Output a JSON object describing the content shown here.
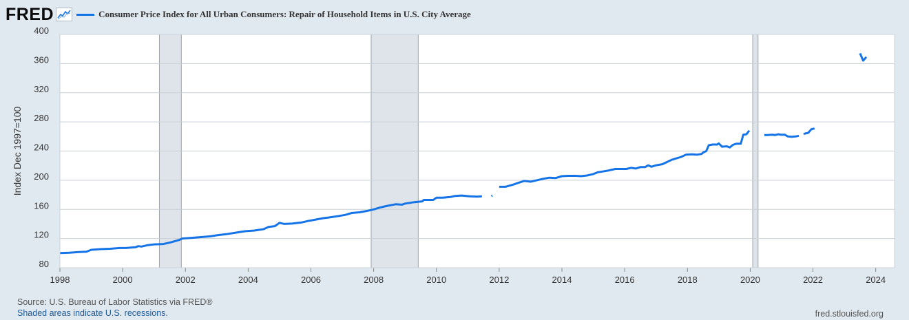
{
  "logo": {
    "text": "FRED"
  },
  "colors": {
    "series": "#1473e6",
    "recession": "#dfe4ea",
    "background": "#e1e9f0",
    "plot": "#ffffff"
  },
  "footer": {
    "source": "Source: U.S. Bureau of Labor Statistics via FRED®",
    "recession_note": "Shaded areas indicate U.S. recessions.",
    "site": "fred.stlouisfed.org"
  },
  "chart_data": {
    "type": "line",
    "title": "Consumer Price Index for All Urban Consumers: Repair of Household Items in U.S. City Average",
    "ylabel": "Index Dec 1997=100",
    "xlabel": "",
    "xlim": [
      1998.0,
      2024.6
    ],
    "ylim": [
      80,
      400
    ],
    "y_ticks": [
      80,
      120,
      160,
      200,
      240,
      280,
      320,
      360,
      400
    ],
    "x_ticks": [
      1998,
      2000,
      2002,
      2004,
      2006,
      2008,
      2010,
      2012,
      2014,
      2016,
      2018,
      2020,
      2022,
      2024
    ],
    "grid": true,
    "legend": "top",
    "recessions": [
      [
        2001.17,
        2001.87
      ],
      [
        2007.92,
        2009.42
      ],
      [
        2020.08,
        2020.25
      ]
    ],
    "series": [
      {
        "name": "Consumer Price Index for All Urban Consumers: Repair of Household Items in U.S. City Average",
        "segments": [
          [
            [
              1998.0,
              100
            ],
            [
              1998.3,
              100.5
            ],
            [
              1998.6,
              101.5
            ],
            [
              1998.85,
              102
            ],
            [
              1999.0,
              104.5
            ],
            [
              1999.3,
              105.5
            ],
            [
              1999.6,
              106
            ],
            [
              1999.9,
              107
            ],
            [
              2000.1,
              107
            ],
            [
              2000.4,
              108
            ],
            [
              2000.5,
              109.5
            ],
            [
              2000.6,
              109
            ],
            [
              2000.8,
              111
            ],
            [
              2001.0,
              112
            ],
            [
              2001.3,
              112.5
            ],
            [
              2001.55,
              115
            ],
            [
              2001.8,
              118
            ],
            [
              2001.9,
              120
            ],
            [
              2002.2,
              121
            ],
            [
              2002.5,
              122
            ],
            [
              2002.8,
              123
            ],
            [
              2003.0,
              124.5
            ],
            [
              2003.3,
              126
            ],
            [
              2003.6,
              128
            ],
            [
              2003.9,
              130
            ],
            [
              2004.2,
              131
            ],
            [
              2004.5,
              133
            ],
            [
              2004.65,
              136
            ],
            [
              2004.85,
              137
            ],
            [
              2005.0,
              141.5
            ],
            [
              2005.15,
              140
            ],
            [
              2005.4,
              140.5
            ],
            [
              2005.7,
              142
            ],
            [
              2005.9,
              144
            ],
            [
              2006.15,
              146
            ],
            [
              2006.4,
              148
            ],
            [
              2006.6,
              149
            ],
            [
              2006.9,
              151
            ],
            [
              2007.1,
              152.5
            ],
            [
              2007.3,
              155
            ],
            [
              2007.55,
              156
            ],
            [
              2007.8,
              158
            ],
            [
              2008.0,
              160
            ],
            [
              2008.2,
              162.5
            ],
            [
              2008.45,
              165
            ],
            [
              2008.7,
              167
            ],
            [
              2008.9,
              166.5
            ],
            [
              2009.0,
              168
            ],
            [
              2009.3,
              170
            ],
            [
              2009.55,
              171
            ],
            [
              2009.6,
              173
            ],
            [
              2009.75,
              173
            ],
            [
              2009.9,
              173
            ],
            [
              2010.0,
              176
            ],
            [
              2010.2,
              176
            ],
            [
              2010.45,
              177
            ],
            [
              2010.6,
              178.5
            ],
            [
              2010.8,
              179
            ],
            [
              2011.05,
              178
            ],
            [
              2011.3,
              177.5
            ],
            [
              2011.45,
              178
            ]
          ],
          [
            [
              2011.75,
              178.5
            ],
            [
              2011.78,
              179
            ]
          ],
          [
            [
              2012.0,
              191
            ],
            [
              2012.2,
              191
            ],
            [
              2012.45,
              194
            ],
            [
              2012.65,
              197
            ],
            [
              2012.8,
              199
            ],
            [
              2013.0,
              198
            ],
            [
              2013.2,
              200
            ],
            [
              2013.4,
              202
            ],
            [
              2013.6,
              203.5
            ],
            [
              2013.8,
              203
            ],
            [
              2014.0,
              205.5
            ],
            [
              2014.2,
              206
            ],
            [
              2014.45,
              206
            ],
            [
              2014.6,
              205.5
            ],
            [
              2014.8,
              206.5
            ],
            [
              2015.0,
              208.5
            ],
            [
              2015.15,
              211
            ],
            [
              2015.3,
              212
            ],
            [
              2015.5,
              213.5
            ],
            [
              2015.7,
              215.5
            ],
            [
              2015.9,
              215.5
            ],
            [
              2016.05,
              215.5
            ],
            [
              2016.2,
              217
            ],
            [
              2016.35,
              216
            ],
            [
              2016.5,
              218
            ],
            [
              2016.65,
              218
            ],
            [
              2016.75,
              220.5
            ],
            [
              2016.85,
              218.5
            ],
            [
              2017.0,
              220.5
            ],
            [
              2017.2,
              222
            ],
            [
              2017.35,
              225
            ],
            [
              2017.5,
              228
            ],
            [
              2017.65,
              230
            ],
            [
              2017.8,
              232
            ],
            [
              2017.95,
              235
            ],
            [
              2018.15,
              235.5
            ],
            [
              2018.3,
              235
            ],
            [
              2018.45,
              236
            ],
            [
              2018.5,
              238
            ],
            [
              2018.6,
              240
            ],
            [
              2018.68,
              248
            ],
            [
              2018.8,
              249
            ],
            [
              2018.95,
              249
            ],
            [
              2019.0,
              250.5
            ],
            [
              2019.1,
              246
            ],
            [
              2019.25,
              246.5
            ],
            [
              2019.35,
              245
            ],
            [
              2019.45,
              248.5
            ],
            [
              2019.55,
              250
            ],
            [
              2019.7,
              250
            ],
            [
              2019.78,
              262.5
            ],
            [
              2019.88,
              263
            ],
            [
              2019.97,
              268
            ]
          ],
          [
            [
              2020.45,
              262
            ],
            [
              2020.55,
              262
            ],
            [
              2020.7,
              262.5
            ],
            [
              2020.8,
              262
            ],
            [
              2020.9,
              263
            ],
            [
              2020.97,
              262.5
            ],
            [
              2021.1,
              262.5
            ],
            [
              2021.2,
              260
            ],
            [
              2021.32,
              259.5
            ],
            [
              2021.45,
              260
            ],
            [
              2021.55,
              261
            ]
          ],
          [
            [
              2021.7,
              263.5
            ],
            [
              2021.85,
              265
            ],
            [
              2021.95,
              270
            ],
            [
              2022.05,
              271
            ]
          ],
          [
            [
              2023.5,
              374
            ],
            [
              2023.6,
              364
            ],
            [
              2023.7,
              369
            ]
          ]
        ]
      }
    ]
  }
}
